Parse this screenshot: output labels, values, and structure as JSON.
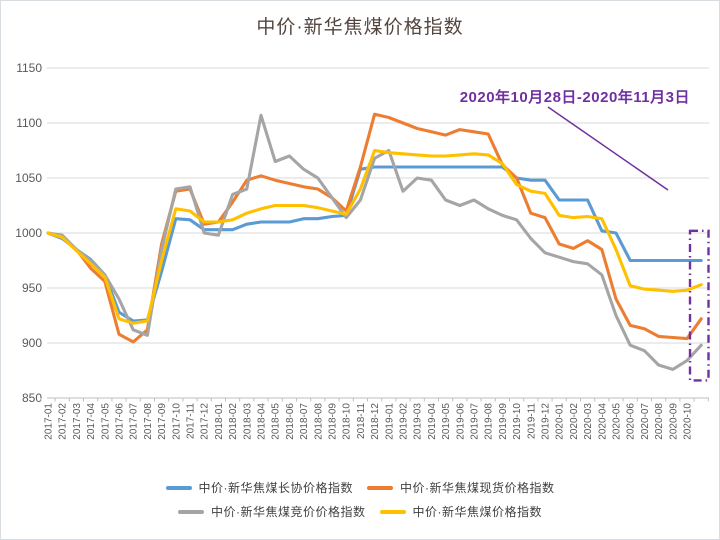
{
  "title": "中价·新华焦煤价格指数",
  "annotation": {
    "label": "2020年10月28日-2020年11月3日",
    "color": "#7030A0"
  },
  "colors": {
    "grid": "#D9D9D9",
    "axis": "#BFBFBF",
    "tick_label": "#595959",
    "title_text": "#54453f",
    "highlight": "#7030A0",
    "background": "#FFFFFF"
  },
  "chart_data": {
    "type": "line",
    "title": "中价·新华焦煤价格指数",
    "xlabel": "",
    "ylabel": "",
    "ylim": [
      850,
      1150
    ],
    "y_ticks": [
      850,
      900,
      950,
      1000,
      1050,
      1100,
      1150
    ],
    "grid": "horizontal",
    "legend_position": "bottom",
    "x_labels": [
      "2017-01",
      "2017-02",
      "2017-03",
      "2017-04",
      "2017-05",
      "2017-06",
      "2017-07",
      "2017-08",
      "2017-09",
      "2017-10",
      "2017-11",
      "2017-12",
      "2018-01",
      "2018-02",
      "2018-03",
      "2018-04",
      "2018-05",
      "2018-06",
      "2018-07",
      "2018-08",
      "2018-09",
      "2018-10",
      "2018-11",
      "2018-12",
      "2019-01",
      "2019-02",
      "2019-03",
      "2019-04",
      "2019-05",
      "2019-06",
      "2019-07",
      "2019-08",
      "2019-09",
      "2019-10",
      "2019-11",
      "2019-12",
      "2020-01",
      "2020-02",
      "2020-03",
      "2020-04",
      "2020-05",
      "2020-06",
      "2020-07",
      "2020-08",
      "2020-09",
      "2020-10"
    ],
    "note": "values have 47 points: 46 monthly points (2017-01..2020-10) plus the 2020-11-03 end point; dashed box marks 2020-10-28 to 2020-11-03",
    "series": [
      {
        "name": "中价·新华焦煤长协价格指数",
        "color": "#5B9BD5",
        "values": [
          1000,
          995,
          985,
          976,
          962,
          928,
          920,
          921,
          965,
          1013,
          1012,
          1003,
          1003,
          1003,
          1008,
          1010,
          1010,
          1010,
          1013,
          1013,
          1015,
          1016,
          1058,
          1060,
          1060,
          1060,
          1060,
          1060,
          1060,
          1060,
          1060,
          1060,
          1060,
          1050,
          1048,
          1048,
          1030,
          1030,
          1030,
          1002,
          1000,
          975,
          975,
          975,
          975,
          975,
          975
        ]
      },
      {
        "name": "中价·新华焦煤现货价格指数",
        "color": "#ED7D31",
        "values": [
          1000,
          996,
          985,
          968,
          956,
          908,
          901,
          912,
          990,
          1038,
          1040,
          1008,
          1010,
          1028,
          1048,
          1052,
          1048,
          1045,
          1042,
          1040,
          1032,
          1020,
          1060,
          1108,
          1105,
          1100,
          1095,
          1092,
          1089,
          1094,
          1092,
          1090,
          1062,
          1050,
          1018,
          1014,
          990,
          986,
          993,
          985,
          940,
          916,
          913,
          906,
          905,
          904,
          922
        ]
      },
      {
        "name": "中价·新华焦煤竞价价格指数",
        "color": "#A5A5A5",
        "values": [
          1000,
          998,
          985,
          975,
          962,
          940,
          912,
          907,
          985,
          1040,
          1042,
          1000,
          998,
          1035,
          1040,
          1107,
          1065,
          1070,
          1058,
          1050,
          1032,
          1014,
          1030,
          1068,
          1075,
          1038,
          1050,
          1048,
          1030,
          1025,
          1030,
          1022,
          1016,
          1012,
          995,
          982,
          978,
          974,
          972,
          962,
          925,
          898,
          893,
          880,
          876,
          884,
          898
        ]
      },
      {
        "name": "中价·新华焦煤价格指数",
        "color": "#FFC000",
        "values": [
          1000,
          996,
          984,
          972,
          960,
          922,
          918,
          920,
          975,
          1022,
          1020,
          1010,
          1010,
          1012,
          1018,
          1022,
          1025,
          1025,
          1025,
          1023,
          1020,
          1017,
          1040,
          1075,
          1073,
          1072,
          1071,
          1070,
          1070,
          1071,
          1072,
          1071,
          1063,
          1044,
          1038,
          1036,
          1016,
          1014,
          1015,
          1013,
          985,
          952,
          949,
          948,
          947,
          948,
          953
        ]
      }
    ],
    "highlight_box": {
      "x_range": [
        "2020-10",
        "2020-11-03"
      ],
      "y_range": [
        866,
        1002
      ],
      "style": "dash-dot",
      "color": "#7030A0"
    }
  }
}
